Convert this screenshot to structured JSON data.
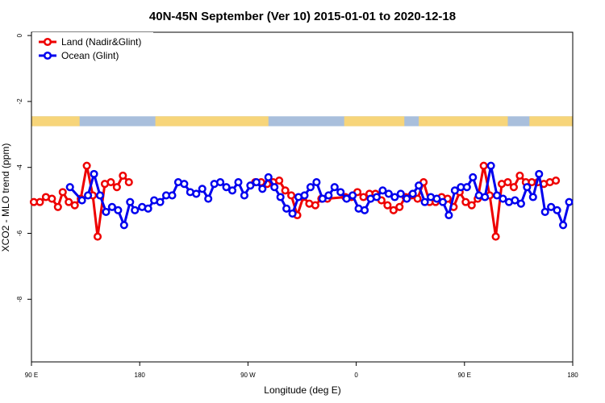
{
  "chart_data": {
    "type": "line",
    "title": "40N-45N September (Ver 10)   2015-01-01 to 2020-12-18",
    "xlabel": "Longitude (deg E)",
    "ylabel": "XCO2 - MLO trend (ppm)",
    "xlim": [
      90,
      540
    ],
    "ylim": [
      -9.9,
      0.1
    ],
    "x_ticks": [
      {
        "value": 90,
        "label": "90 E"
      },
      {
        "value": 180,
        "label": "180"
      },
      {
        "value": 270,
        "label": "90 W"
      },
      {
        "value": 360,
        "label": "0"
      },
      {
        "value": 450,
        "label": "90 E"
      },
      {
        "value": 540,
        "label": "180"
      }
    ],
    "y_ticks": [
      {
        "value": 0,
        "label": "0"
      },
      {
        "value": -2,
        "label": "-2"
      },
      {
        "value": -4,
        "label": "-4"
      },
      {
        "value": -6,
        "label": "-6"
      },
      {
        "value": -8,
        "label": "-8"
      }
    ],
    "grid": false,
    "legend_position": "top-left",
    "surface_band": {
      "y_range": [
        -2.75,
        -2.45
      ],
      "land_color": "#f7d57a",
      "ocean_color": "#a9bfdc",
      "land_lon_ranges": [
        [
          90,
          130
        ],
        [
          193,
          287
        ],
        [
          350,
          400
        ],
        [
          412,
          486
        ],
        [
          504,
          540
        ]
      ]
    },
    "series": [
      {
        "name": "Land (Nadir&Glint)",
        "color": "#ee0000",
        "x": [
          92,
          97,
          102,
          107,
          112,
          116,
          121,
          126,
          131,
          136,
          141,
          145,
          151,
          156,
          161,
          166,
          171,
          276,
          281,
          286,
          291,
          296,
          301,
          306,
          311,
          316,
          321,
          326,
          331,
          336,
          351,
          356,
          361,
          366,
          371,
          376,
          381,
          386,
          391,
          396,
          401,
          406,
          411,
          416,
          421,
          426,
          431,
          436,
          441,
          446,
          451,
          456,
          461,
          466,
          471,
          476,
          481,
          486,
          491,
          496,
          501,
          506,
          511,
          516,
          521,
          526
        ],
        "y": [
          -5.05,
          -5.05,
          -4.9,
          -4.95,
          -5.2,
          -4.75,
          -5.05,
          -5.15,
          -4.95,
          -3.95,
          -4.85,
          -6.1,
          -4.5,
          -4.45,
          -4.6,
          -4.25,
          -4.45,
          -4.45,
          -4.45,
          -4.5,
          -4.45,
          -4.4,
          -4.7,
          -4.85,
          -5.45,
          -4.9,
          -5.1,
          -5.15,
          -4.95,
          -4.95,
          -4.9,
          -4.9,
          -4.75,
          -4.9,
          -4.8,
          -4.8,
          -5.0,
          -5.15,
          -5.3,
          -5.2,
          -4.9,
          -4.85,
          -4.95,
          -4.45,
          -5.05,
          -5.05,
          -4.9,
          -4.95,
          -5.2,
          -4.75,
          -5.05,
          -5.15,
          -4.95,
          -3.95,
          -4.85,
          -6.1,
          -4.5,
          -4.45,
          -4.6,
          -4.25,
          -4.45,
          -4.45,
          -4.45,
          -4.5,
          -4.45,
          -4.4
        ]
      },
      {
        "name": "Ocean (Glint)",
        "color": "#0000ee",
        "x": [
          122,
          132,
          137,
          142,
          147,
          152,
          157,
          162,
          167,
          172,
          176,
          182,
          187,
          192,
          197,
          202,
          207,
          212,
          217,
          222,
          227,
          232,
          237,
          242,
          247,
          252,
          257,
          262,
          267,
          272,
          277,
          282,
          287,
          292,
          297,
          302,
          307,
          312,
          317,
          322,
          327,
          332,
          337,
          342,
          347,
          352,
          357,
          362,
          367,
          372,
          377,
          382,
          387,
          392,
          397,
          402,
          407,
          412,
          417,
          422,
          427,
          432,
          437,
          442,
          447,
          452,
          457,
          462,
          467,
          472,
          477,
          482,
          487,
          492,
          497,
          502,
          507,
          512,
          517,
          522,
          527,
          532,
          537
        ],
        "y": [
          -4.6,
          -5.0,
          -4.85,
          -4.2,
          -4.85,
          -5.35,
          -5.2,
          -5.3,
          -5.75,
          -5.05,
          -5.3,
          -5.2,
          -5.25,
          -5.0,
          -5.05,
          -4.85,
          -4.85,
          -4.45,
          -4.5,
          -4.75,
          -4.8,
          -4.65,
          -4.95,
          -4.5,
          -4.45,
          -4.6,
          -4.7,
          -4.45,
          -4.85,
          -4.55,
          -4.45,
          -4.65,
          -4.3,
          -4.6,
          -4.9,
          -5.25,
          -5.4,
          -4.9,
          -4.85,
          -4.6,
          -4.45,
          -4.95,
          -4.85,
          -4.6,
          -4.75,
          -4.95,
          -4.85,
          -5.25,
          -5.3,
          -4.95,
          -4.9,
          -4.7,
          -4.8,
          -4.9,
          -4.8,
          -4.95,
          -4.8,
          -4.55,
          -5.05,
          -4.9,
          -4.95,
          -5.05,
          -5.45,
          -4.7,
          -4.6,
          -4.6,
          -4.3,
          -4.85,
          -4.9,
          -3.95,
          -4.85,
          -4.95,
          -5.05,
          -5.0,
          -5.1,
          -4.6,
          -4.9,
          -4.2,
          -5.35,
          -5.2,
          -5.3,
          -5.75,
          -5.05
        ]
      }
    ]
  }
}
